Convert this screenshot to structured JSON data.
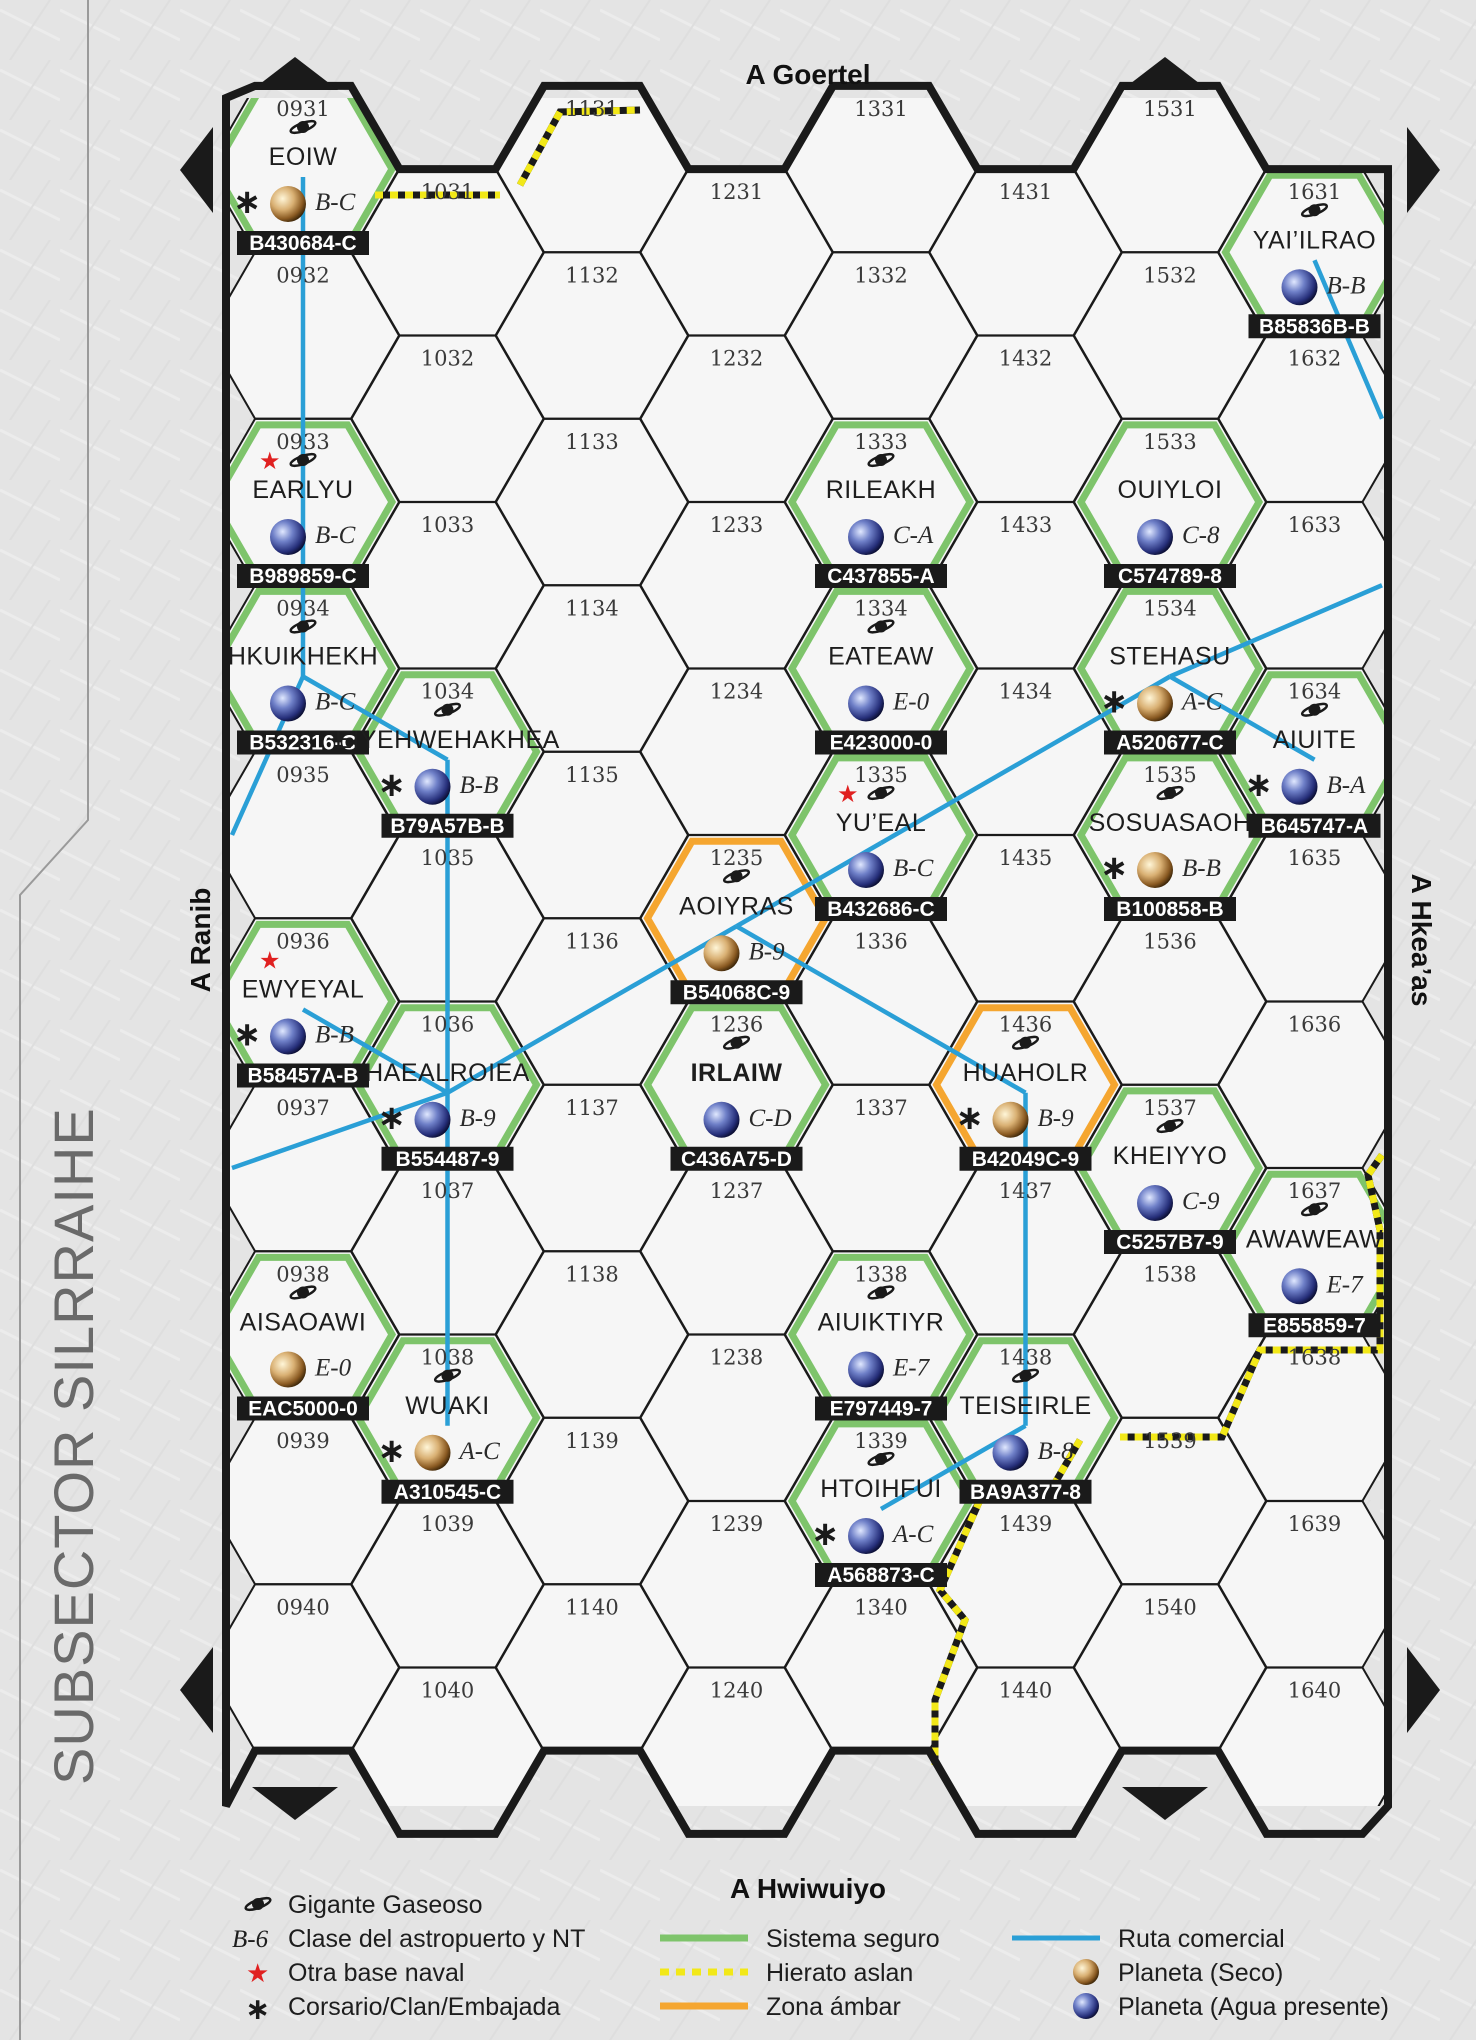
{
  "subsector_title": "SUBSECTOR SILRRAIHE",
  "borders": {
    "top": "A Goertel",
    "bottom": "A Hwiwuiyo",
    "left": "A Ranib",
    "right": "A Hkea’as"
  },
  "colors": {
    "safe": "#7ec46b",
    "amber": "#f5a630",
    "route": "#2a9fd6",
    "aslan": "#f2e818",
    "grid": "#1a1a1a",
    "naval": "#e02020",
    "uwp_bg": "#1a1a1a"
  },
  "hex_grid": {
    "columns": [
      "09",
      "10",
      "11",
      "12",
      "13",
      "14",
      "15",
      "16"
    ],
    "rows": [
      "31",
      "32",
      "33",
      "34",
      "35",
      "36",
      "37",
      "38",
      "39",
      "40"
    ]
  },
  "systems": [
    {
      "hex": "0931",
      "name": "EOIW",
      "port": "B-C",
      "uwp": "B430684-C",
      "gas_giant": true,
      "naval": false,
      "corsair": true,
      "planet": "dry",
      "zone": "safe"
    },
    {
      "hex": "0933",
      "name": "EARLYU",
      "port": "B-C",
      "uwp": "B989859-C",
      "gas_giant": true,
      "naval": true,
      "corsair": false,
      "planet": "wet",
      "zone": "safe"
    },
    {
      "hex": "0934",
      "name": "HKUIKHEKH",
      "port": "B-C",
      "uwp": "B532316-C",
      "gas_giant": true,
      "naval": false,
      "corsair": false,
      "planet": "wet",
      "zone": "safe"
    },
    {
      "hex": "0936",
      "name": "EWYEYAL",
      "port": "B-B",
      "uwp": "B58457A-B",
      "gas_giant": false,
      "naval": true,
      "corsair": true,
      "planet": "wet",
      "zone": "safe"
    },
    {
      "hex": "0938",
      "name": "AISAOAWI",
      "port": "E-0",
      "uwp": "EAC5000-0",
      "gas_giant": true,
      "naval": false,
      "corsair": false,
      "planet": "dry",
      "zone": "safe"
    },
    {
      "hex": "1034",
      "name": "EIYEHWEHAKHEA",
      "port": "B-B",
      "uwp": "B79A57B-B",
      "gas_giant": true,
      "naval": false,
      "corsair": true,
      "planet": "wet",
      "zone": "safe"
    },
    {
      "hex": "1036",
      "name": "HAEALROIEA",
      "port": "B-9",
      "uwp": "B554487-9",
      "gas_giant": false,
      "naval": false,
      "corsair": true,
      "planet": "wet",
      "zone": "safe"
    },
    {
      "hex": "1038",
      "name": "WUAKI",
      "port": "A-C",
      "uwp": "A310545-C",
      "gas_giant": true,
      "naval": false,
      "corsair": true,
      "planet": "dry",
      "zone": "safe"
    },
    {
      "hex": "1235",
      "name": "AOIYRAS",
      "port": "B-9",
      "uwp": "B54068C-9",
      "gas_giant": true,
      "naval": false,
      "corsair": false,
      "planet": "dry",
      "zone": "amber"
    },
    {
      "hex": "1236",
      "name": "IRLAIW",
      "port": "C-D",
      "uwp": "C436A75-D",
      "gas_giant": true,
      "naval": false,
      "corsair": false,
      "planet": "wet",
      "zone": "safe",
      "bold": true
    },
    {
      "hex": "1333",
      "name": "RILEAKH",
      "port": "C-A",
      "uwp": "C437855-A",
      "gas_giant": true,
      "naval": false,
      "corsair": false,
      "planet": "wet",
      "zone": "safe"
    },
    {
      "hex": "1334",
      "name": "EATEAW",
      "port": "E-0",
      "uwp": "E423000-0",
      "gas_giant": true,
      "naval": false,
      "corsair": false,
      "planet": "wet",
      "zone": "safe"
    },
    {
      "hex": "1335",
      "name": "YU’EAL",
      "port": "B-C",
      "uwp": "B432686-C",
      "gas_giant": true,
      "naval": true,
      "corsair": false,
      "planet": "wet",
      "zone": "safe"
    },
    {
      "hex": "1338",
      "name": "AIUIKTIYR",
      "port": "E-7",
      "uwp": "E797449-7",
      "gas_giant": true,
      "naval": false,
      "corsair": false,
      "planet": "wet",
      "zone": "safe"
    },
    {
      "hex": "1339",
      "name": "HTOIHFUI",
      "port": "A-C",
      "uwp": "A568873-C",
      "gas_giant": true,
      "naval": false,
      "corsair": true,
      "planet": "wet",
      "zone": "safe"
    },
    {
      "hex": "1436",
      "name": "HUAHOLR",
      "port": "B-9",
      "uwp": "B42049C-9",
      "gas_giant": true,
      "naval": false,
      "corsair": true,
      "planet": "dry",
      "zone": "amber"
    },
    {
      "hex": "1438",
      "name": "TEISEIRLE",
      "port": "B-8",
      "uwp": "BA9A377-8",
      "gas_giant": true,
      "naval": false,
      "corsair": false,
      "planet": "wet",
      "zone": "safe"
    },
    {
      "hex": "1533",
      "name": "OUIYLOI",
      "port": "C-8",
      "uwp": "C574789-8",
      "gas_giant": false,
      "naval": false,
      "corsair": false,
      "planet": "wet",
      "zone": "safe"
    },
    {
      "hex": "1534",
      "name": "STEHASU",
      "port": "A-C",
      "uwp": "A520677-C",
      "gas_giant": false,
      "naval": false,
      "corsair": true,
      "planet": "dry",
      "zone": "safe"
    },
    {
      "hex": "1535",
      "name": "SOSUASAOH",
      "port": "B-B",
      "uwp": "B100858-B",
      "gas_giant": true,
      "naval": false,
      "corsair": true,
      "planet": "dry",
      "zone": "safe"
    },
    {
      "hex": "1537",
      "name": "KHEIYYO",
      "port": "C-9",
      "uwp": "C5257B7-9",
      "gas_giant": true,
      "naval": false,
      "corsair": false,
      "planet": "wet",
      "zone": "safe"
    },
    {
      "hex": "1631",
      "name": "YAI’ILRAO",
      "port": "B-B",
      "uwp": "B85836B-B",
      "gas_giant": true,
      "naval": false,
      "corsair": false,
      "planet": "wet",
      "zone": "safe"
    },
    {
      "hex": "1634",
      "name": "AIUITE",
      "port": "B-A",
      "uwp": "B645747-A",
      "gas_giant": true,
      "naval": false,
      "corsair": true,
      "planet": "wet",
      "zone": "safe"
    },
    {
      "hex": "1637",
      "name": "AWAWEAW",
      "port": "E-7",
      "uwp": "E855859-7",
      "gas_giant": true,
      "naval": false,
      "corsair": false,
      "planet": "wet",
      "zone": "safe"
    }
  ],
  "routes": [
    [
      "0931",
      "0933"
    ],
    [
      "0933",
      "0934"
    ],
    [
      "0934",
      "1034"
    ],
    [
      "0934",
      "0935-edge"
    ],
    [
      "1034",
      "1036"
    ],
    [
      "1036",
      "1038"
    ],
    [
      "0936",
      "1036"
    ],
    [
      "1036",
      "1235"
    ],
    [
      "1036",
      "0937-edge"
    ],
    [
      "1235",
      "1335"
    ],
    [
      "1235",
      "1436"
    ],
    [
      "1335",
      "1534"
    ],
    [
      "1534",
      "1634"
    ],
    [
      "1534",
      "1633-edge"
    ],
    [
      "1631",
      "1632-edge"
    ],
    [
      "1436",
      "1438"
    ],
    [
      "1438",
      "1339"
    ]
  ],
  "legend": {
    "gas_giant": "Gigante Gaseoso",
    "port_sample": "B-6",
    "port_label": "Clase del astropuerto y NT",
    "naval": "Otra base naval",
    "corsair": "Corsario/Clan/Embajada",
    "safe": "Sistema seguro",
    "aslan": "Hierato aslan",
    "amber": "Zona ámbar",
    "route": "Ruta comercial",
    "dry": "Planeta (Seco)",
    "wet": "Planeta (Agua presente)"
  },
  "icons": {
    "gas_giant": "gas-giant-icon",
    "naval": "naval-base-star-icon",
    "corsair": "corsair-asterisk-icon",
    "dry": "dry-planet-icon",
    "wet": "water-planet-icon"
  }
}
